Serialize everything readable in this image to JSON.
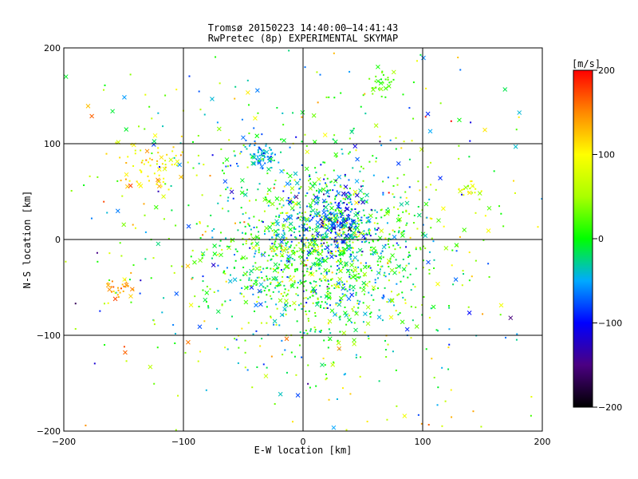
{
  "chart_data": {
    "type": "scatter",
    "title": "Tromsø 20150223 14:40:00–14:41:43",
    "subtitle": "RwPretec (8p) EXPERIMENTAL SKYMAP",
    "xlabel": "E-W location [km]",
    "ylabel": "N-S location [km]",
    "xlim": [
      -200,
      200
    ],
    "ylim": [
      -200,
      200
    ],
    "x_ticks": [
      -200,
      -100,
      0,
      100,
      200
    ],
    "y_ticks": [
      -200,
      -100,
      0,
      100,
      200
    ],
    "grid": true,
    "markers": [
      "cross",
      "dot"
    ],
    "colorbar": {
      "label": "[m/s]",
      "range": [
        -200,
        200
      ],
      "ticks": [
        200,
        100,
        0,
        -100,
        -200
      ],
      "colors": [
        "#000000",
        "#4b0082",
        "#0000ff",
        "#00aaff",
        "#00ff00",
        "#aaff00",
        "#ffff00",
        "#ff8800",
        "#ff0000"
      ]
    },
    "clusters": [
      {
        "x": 15,
        "y": -15,
        "sx": 45,
        "sy": 45,
        "n": 1200,
        "v": 0,
        "vs": 45
      },
      {
        "x": 25,
        "y": 20,
        "sx": 18,
        "sy": 18,
        "n": 250,
        "v": -70,
        "vs": 40
      },
      {
        "x": -35,
        "y": 88,
        "sx": 7,
        "sy": 8,
        "n": 70,
        "v": -55,
        "vs": 20
      },
      {
        "x": 63,
        "y": 163,
        "sx": 7,
        "sy": 7,
        "n": 30,
        "v": 20,
        "vs": 15
      },
      {
        "x": -125,
        "y": 75,
        "sx": 14,
        "sy": 16,
        "n": 70,
        "v": 105,
        "vs": 20
      },
      {
        "x": -150,
        "y": -50,
        "sx": 8,
        "sy": 6,
        "n": 28,
        "v": 145,
        "vs": 15
      },
      {
        "x": 140,
        "y": 50,
        "sx": 5,
        "sy": 5,
        "n": 20,
        "v": 80,
        "vs": 20
      },
      {
        "x": 0,
        "y": 0,
        "sx": 110,
        "sy": 110,
        "n": 650,
        "v": 20,
        "vs": 70
      }
    ]
  }
}
